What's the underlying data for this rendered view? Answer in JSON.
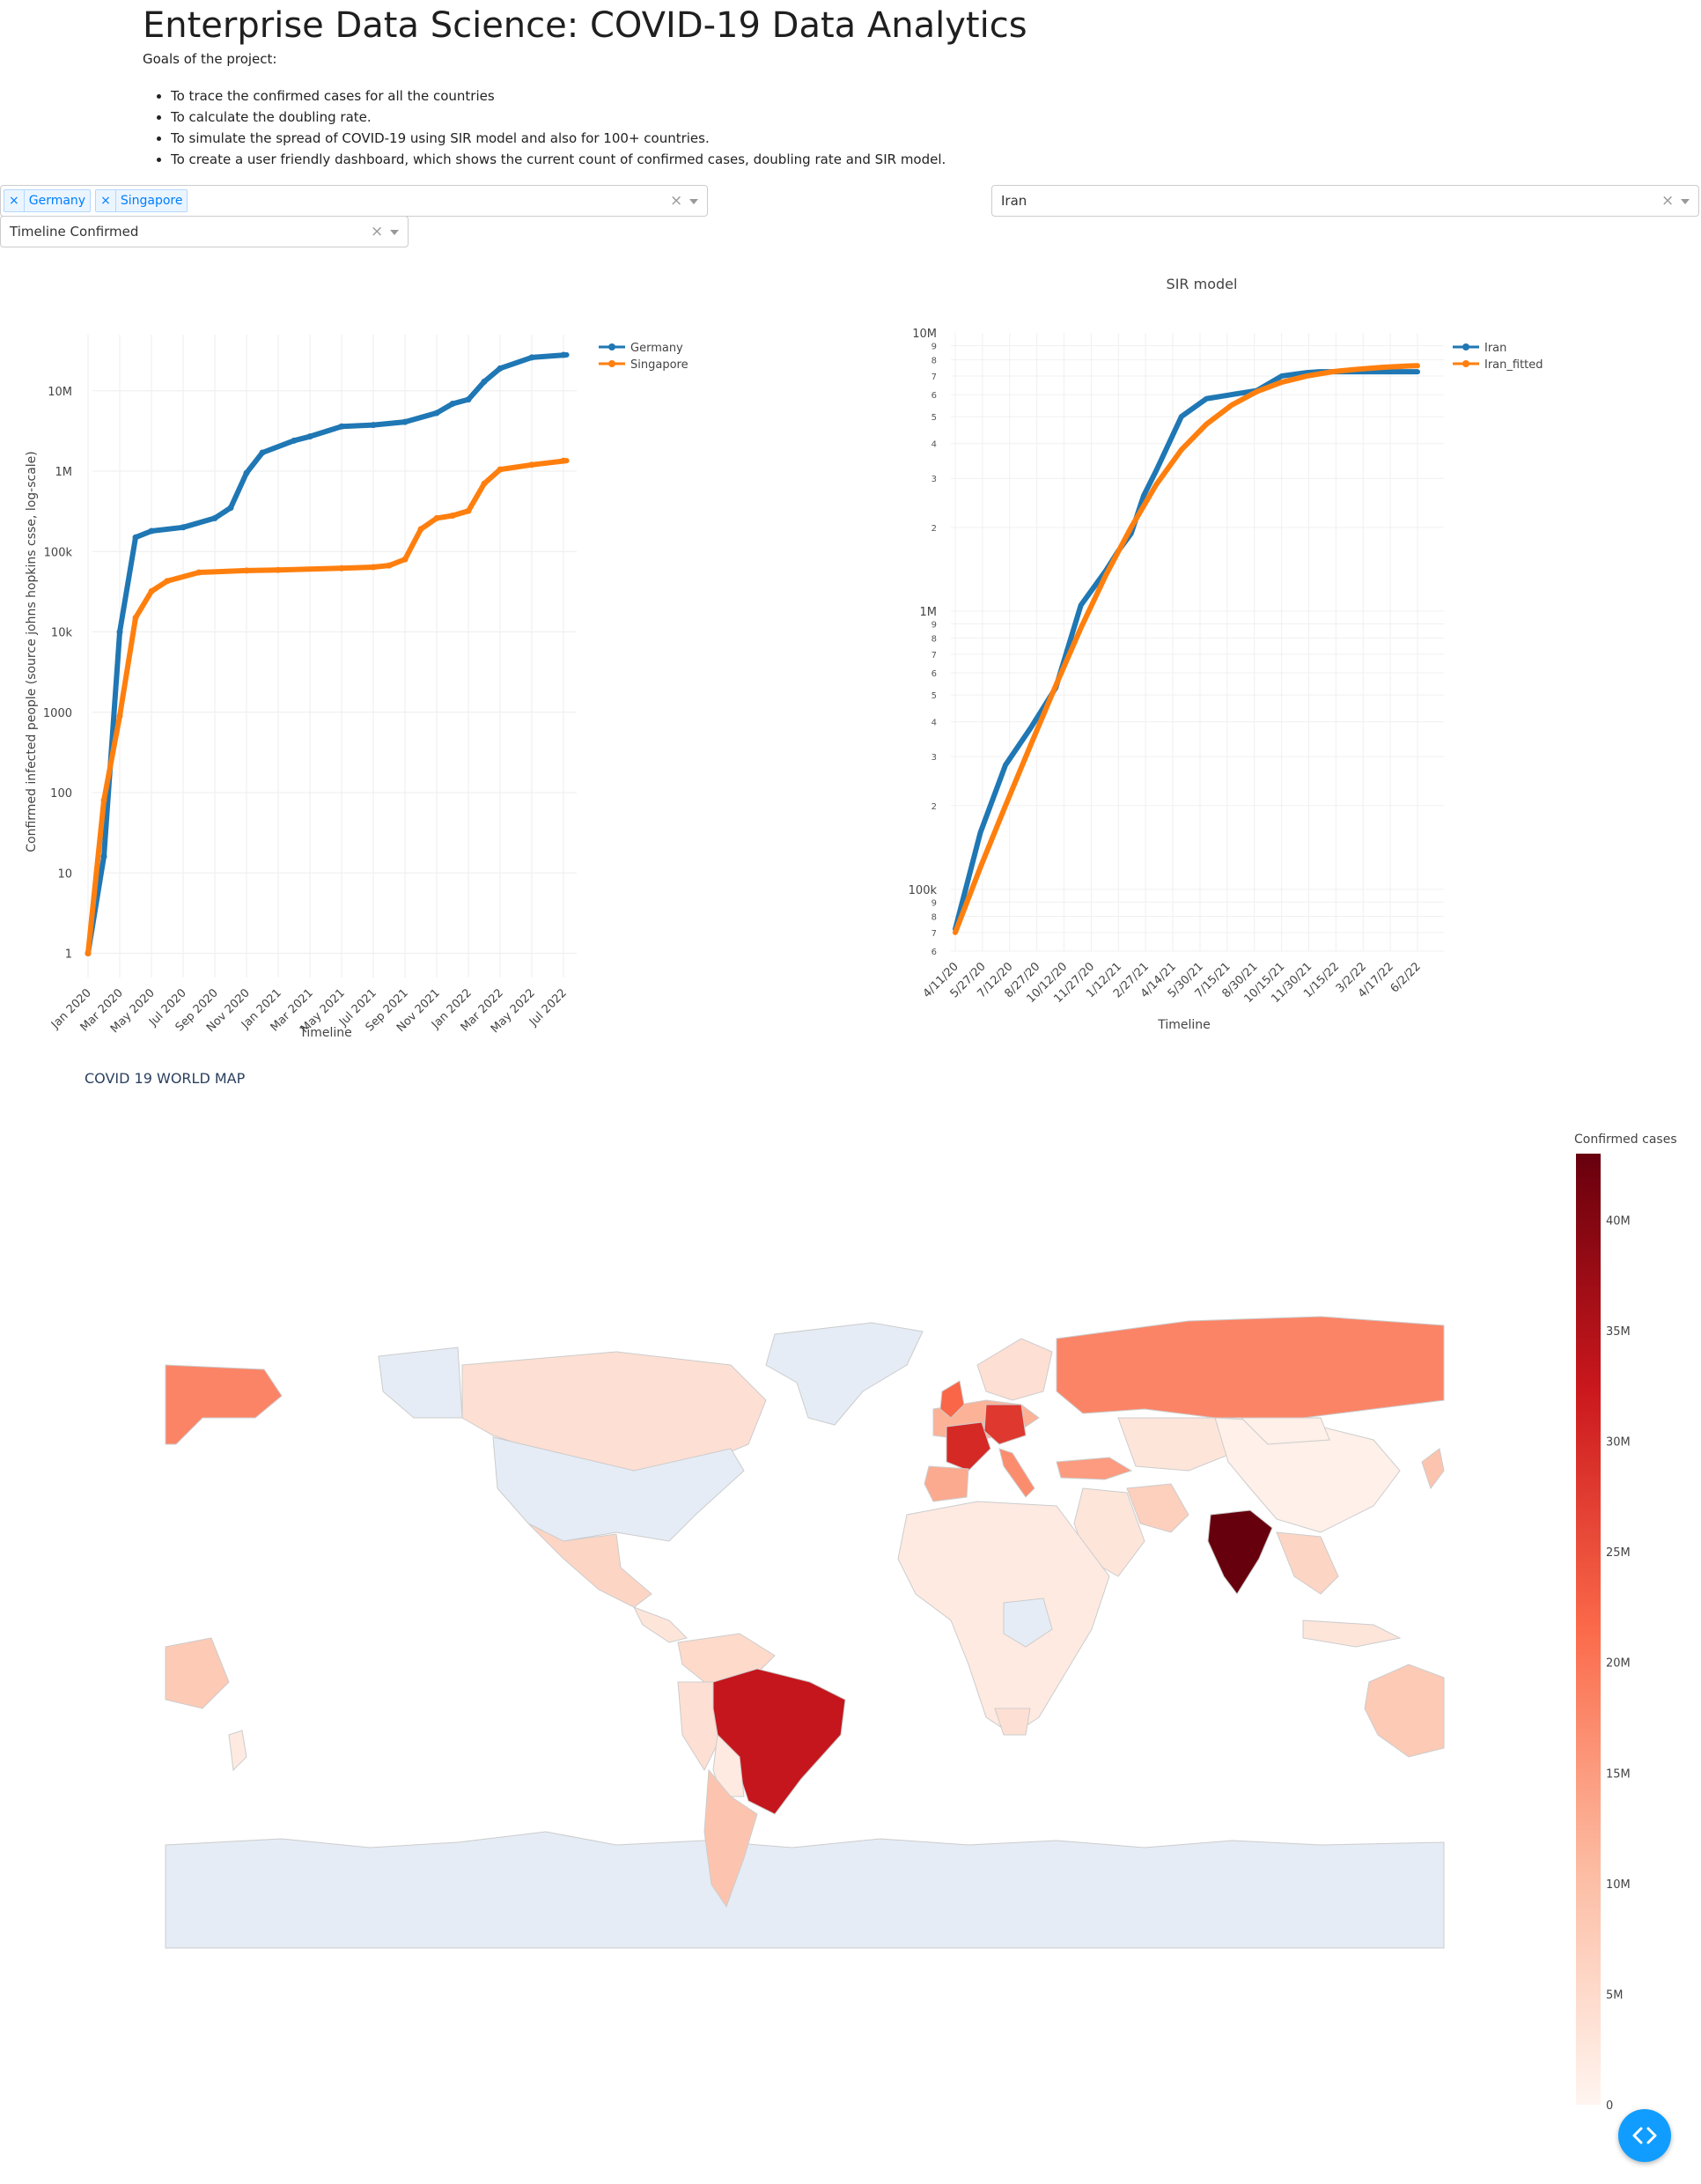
{
  "header": {
    "title": "Enterprise Data Science: COVID-19 Data Analytics",
    "goals_heading": "Goals of the project:",
    "goals": [
      "To trace the confirmed cases for all the countries",
      "To calculate the doubling rate.",
      "To simulate the spread of COVID-19 using SIR model and also for 100+ countries.",
      "To create a user friendly dashboard, which shows the current count of confirmed cases, doubling rate and SIR model."
    ]
  },
  "controls": {
    "country_multiselect": {
      "selected": [
        "Germany",
        "Singapore"
      ],
      "clear_icon": "×"
    },
    "sir_country_select": {
      "value": "Iran",
      "clear_icon": "×"
    },
    "metric_select": {
      "value": "Timeline Confirmed",
      "clear_icon": "×"
    }
  },
  "chart_data": [
    {
      "type": "line",
      "title": "",
      "xlabel": "Timeline",
      "ylabel": "Confirmed infected people (source johns hopkins csse, log-scale)",
      "yscale": "log",
      "ylim": [
        0.5,
        50000000
      ],
      "grid": true,
      "legend": "top-right",
      "x_tick_labels": [
        "Jan 2020",
        "Mar 2020",
        "May 2020",
        "Jul 2020",
        "Sep 2020",
        "Nov 2020",
        "Jan 2021",
        "Mar 2021",
        "May 2021",
        "Jul 2021",
        "Sep 2021",
        "Nov 2021",
        "Jan 2022",
        "Mar 2022",
        "May 2022",
        "Jul 2022"
      ],
      "y_tick_labels": [
        "1",
        "10",
        "100",
        "1000",
        "10k",
        "100k",
        "1M",
        "10M"
      ],
      "series": [
        {
          "name": "Germany",
          "color": "#1f77b4",
          "x": [
            "Jan 2020",
            "Feb 2020",
            "Mar 2020",
            "Apr 2020",
            "May 2020",
            "Jul 2020",
            "Sep 2020",
            "Oct 2020",
            "Nov 2020",
            "Dec 2020",
            "Feb 2021",
            "Mar 2021",
            "May 2021",
            "Jul 2021",
            "Sep 2021",
            "Nov 2021",
            "Dec 2021",
            "Jan 2022",
            "Feb 2022",
            "Mar 2022",
            "May 2022",
            "Jul 2022"
          ],
          "y": [
            1,
            16,
            10000,
            150000,
            180000,
            200000,
            260000,
            350000,
            950000,
            1700000,
            2400000,
            2700000,
            3600000,
            3750000,
            4100000,
            5300000,
            6900000,
            7800000,
            13000000,
            19000000,
            26000000,
            28000000
          ]
        },
        {
          "name": "Singapore",
          "color": "#ff7f0e",
          "x": [
            "Jan 2020",
            "Feb 2020",
            "Mar 2020",
            "Apr 2020",
            "May 2020",
            "Jun 2020",
            "Aug 2020",
            "Nov 2020",
            "Jan 2021",
            "May 2021",
            "Jul 2021",
            "Aug 2021",
            "Sep 2021",
            "Oct 2021",
            "Nov 2021",
            "Dec 2021",
            "Jan 2022",
            "Feb 2022",
            "Mar 2022",
            "May 2022",
            "Jul 2022"
          ],
          "y": [
            1,
            80,
            900,
            15000,
            32000,
            43000,
            55000,
            58000,
            59000,
            62000,
            64000,
            67000,
            80000,
            190000,
            260000,
            280000,
            320000,
            700000,
            1050000,
            1200000,
            1350000
          ]
        }
      ]
    },
    {
      "type": "line",
      "title": "SIR model",
      "xlabel": "Timeline",
      "ylabel": "",
      "yscale": "log",
      "ylim": [
        60000,
        10000000
      ],
      "grid": true,
      "legend": "top-right",
      "x_tick_labels": [
        "4/11/20",
        "5/27/20",
        "7/12/20",
        "8/27/20",
        "10/12/20",
        "11/27/20",
        "1/12/21",
        "2/27/21",
        "4/14/21",
        "5/30/21",
        "7/15/21",
        "8/30/21",
        "10/15/21",
        "11/30/21",
        "1/15/22",
        "3/2/22",
        "4/17/22",
        "6/2/22"
      ],
      "y_tick_labels": [
        "10M",
        "1M",
        "100k"
      ],
      "series": [
        {
          "name": "Iran",
          "color": "#1f77b4",
          "x": [
            0,
            1,
            2,
            3,
            4,
            5,
            6,
            6.5,
            7,
            7.5,
            8,
            9,
            10,
            11,
            12,
            13,
            14,
            14.5,
            15,
            16,
            17,
            18,
            18.4
          ],
          "y": [
            72000,
            160000,
            280000,
            380000,
            530000,
            1050000,
            1400000,
            1650000,
            1900000,
            2600000,
            3200000,
            5000000,
            5800000,
            6000000,
            6200000,
            7000000,
            7200000,
            7250000,
            7250000,
            7250000,
            7250000,
            7250000,
            7250000
          ]
        },
        {
          "name": "Iran_fitted",
          "color": "#ff7f0e",
          "x": [
            0,
            1,
            2,
            3,
            4,
            5,
            6,
            7,
            8,
            9,
            10,
            11,
            12,
            13,
            14,
            15,
            16,
            17,
            18,
            18.4
          ],
          "y": [
            70000,
            120000,
            200000,
            330000,
            540000,
            870000,
            1350000,
            2000000,
            2850000,
            3800000,
            4700000,
            5500000,
            6150000,
            6650000,
            7000000,
            7250000,
            7400000,
            7520000,
            7600000,
            7620000
          ]
        }
      ]
    },
    {
      "type": "heatmap",
      "title": "COVID 19 WORLD MAP",
      "colorbar_title": "Confirmed cases",
      "colorbar_ticks": [
        "0",
        "5M",
        "10M",
        "15M",
        "20M",
        "25M",
        "30M",
        "35M",
        "40M"
      ],
      "colorscale": [
        "#fff5f0",
        "#fcbba1",
        "#fb6a4a",
        "#cb181d",
        "#67000d"
      ],
      "values_millions": {
        "India": 43,
        "Brazil": 33,
        "France": 30,
        "Germany": 28,
        "United Kingdom": 22,
        "Russia": 18,
        "Turkey": 15,
        "Italy": 17,
        "Spain": 13,
        "Argentina": 9,
        "Iran": 7,
        "Australia": 8,
        "Japan": 9,
        "Mexico": 6,
        "Canada": 4
      }
    }
  ],
  "fab": {
    "icon": "code-icon"
  }
}
